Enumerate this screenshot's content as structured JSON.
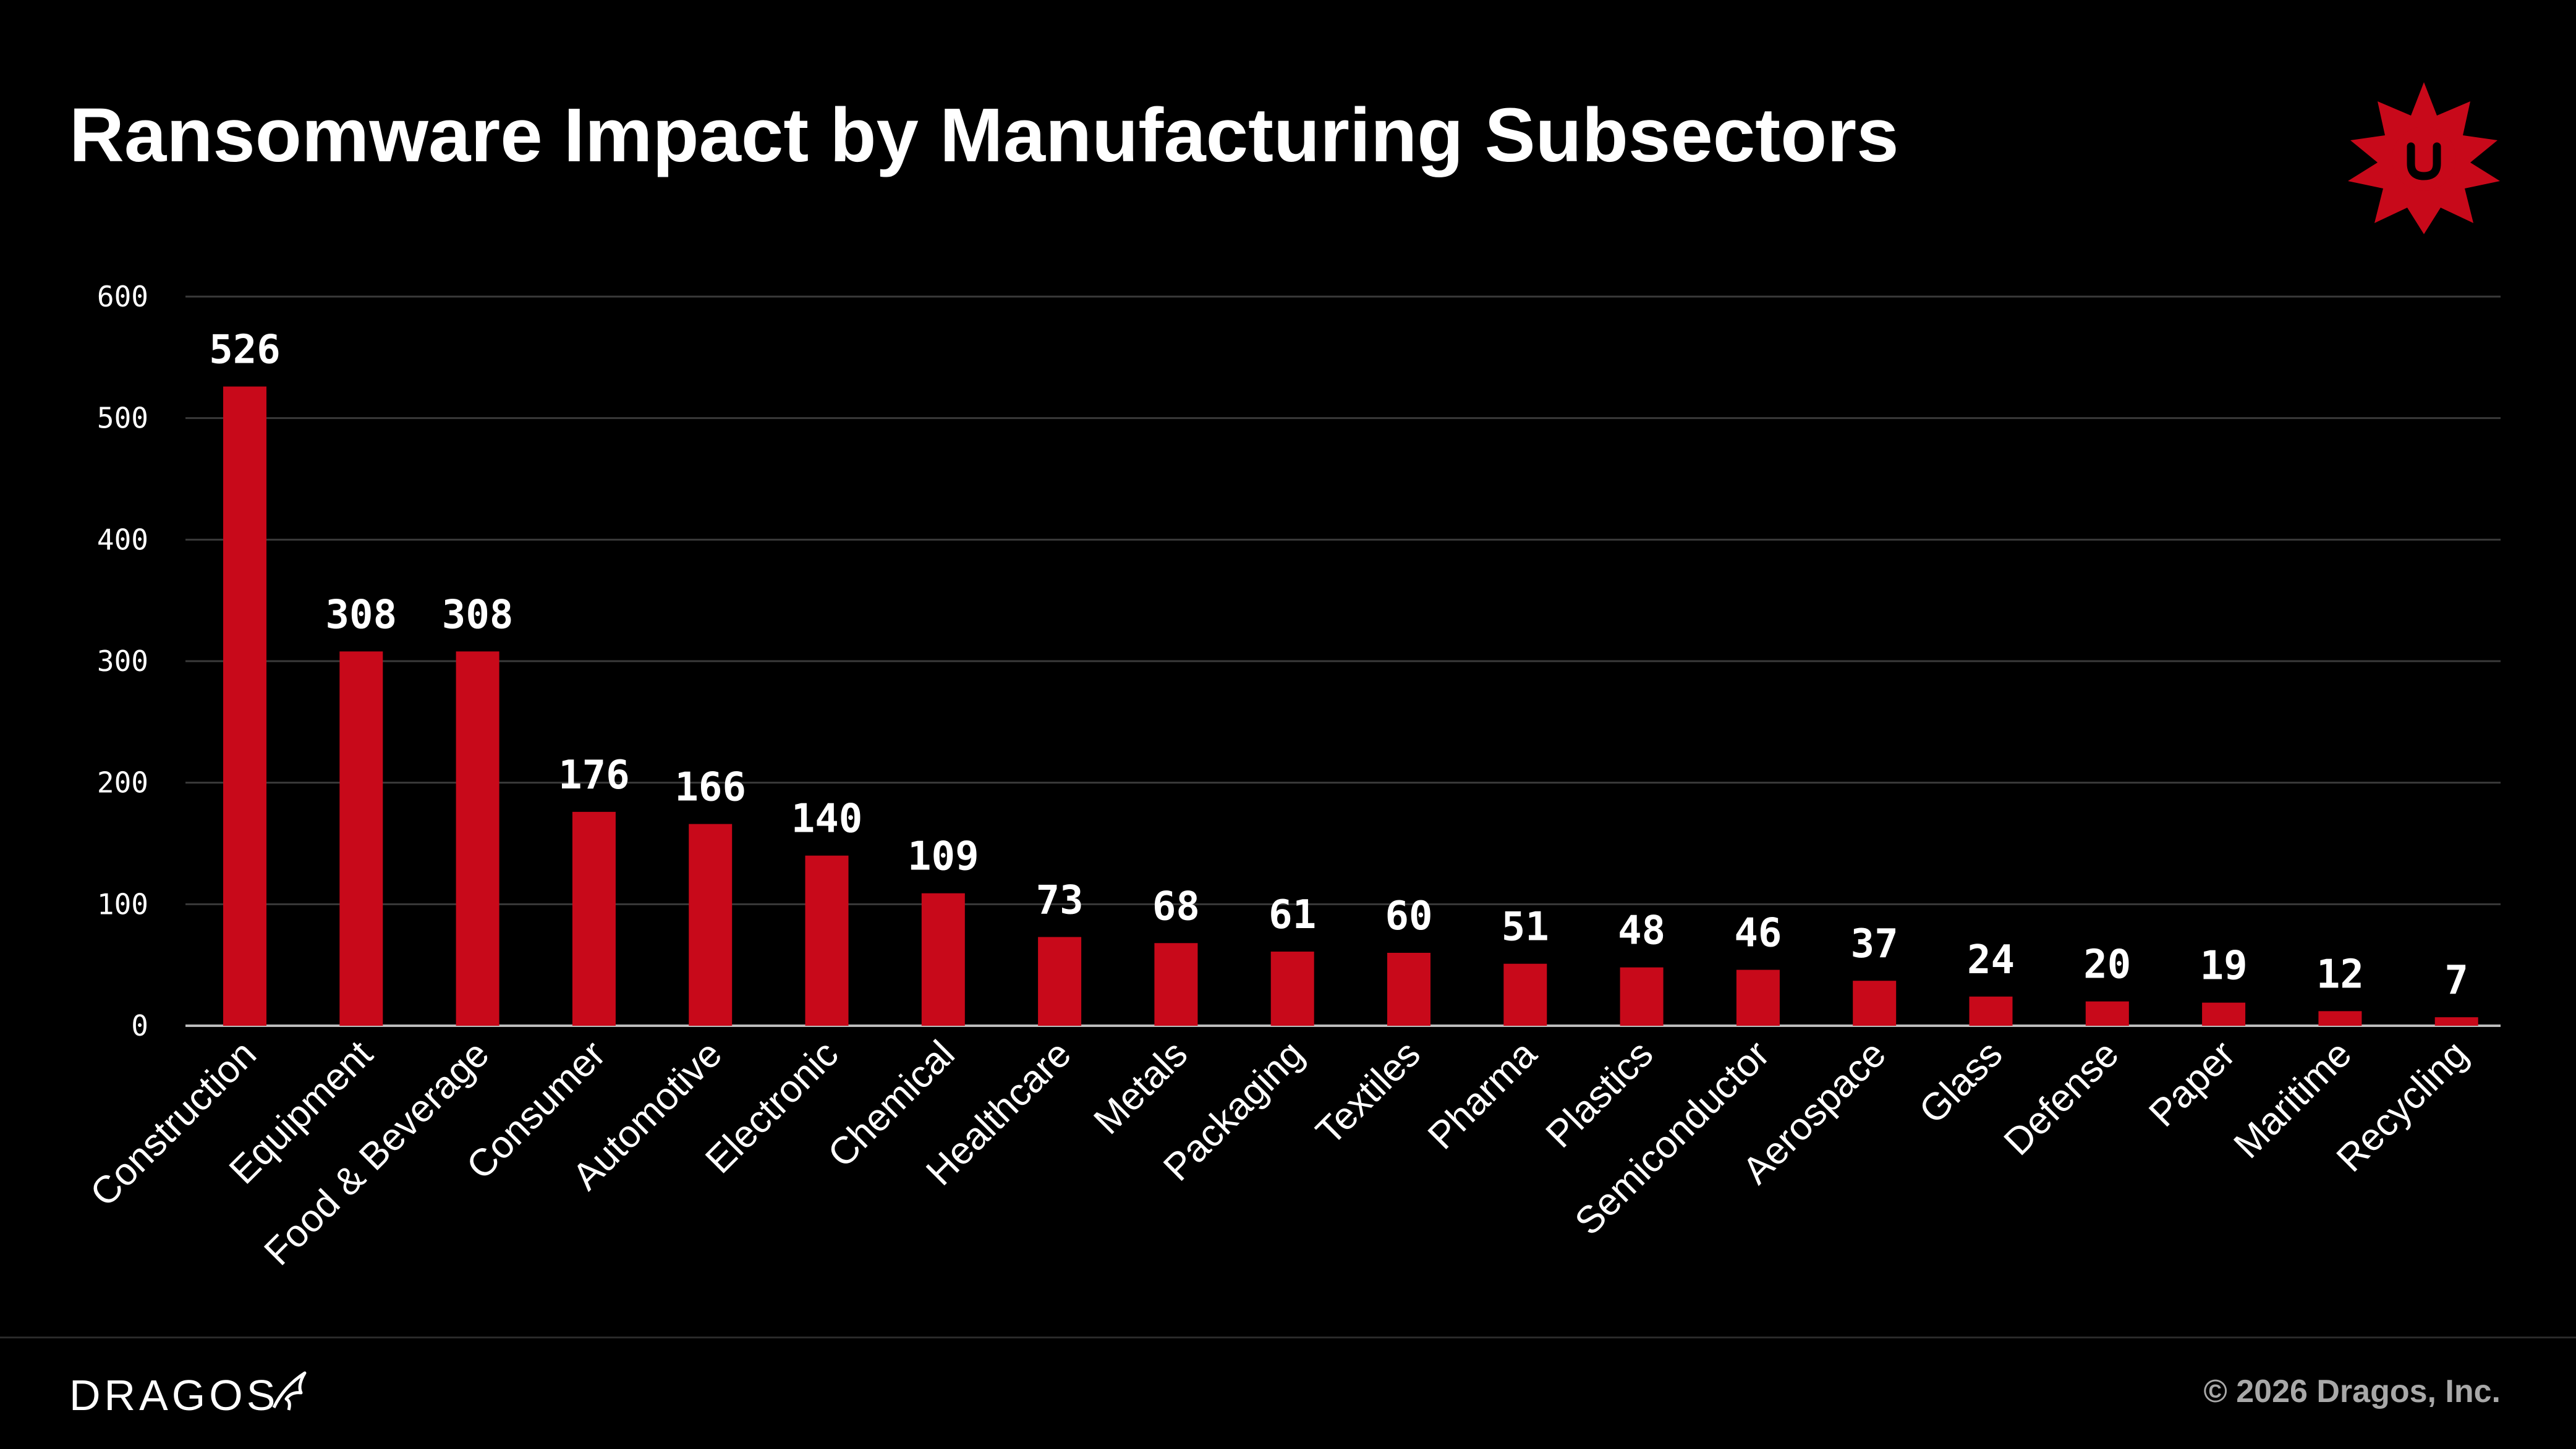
{
  "header": {
    "title": "Ransomware Impact by Manufacturing Subsectors"
  },
  "footer": {
    "logo_text": "DRAGOS",
    "copyright": "© 2026 Dragos, Inc."
  },
  "colors": {
    "background": "#000000",
    "bar": "#c8091a",
    "gridline": "#3a3a3a",
    "axis": "#bdbdbd",
    "text": "#ffffff",
    "muted_text": "#a8a8a8"
  },
  "chart_data": {
    "type": "bar",
    "title": "Ransomware Impact by Manufacturing Subsectors",
    "xlabel": "",
    "ylabel": "",
    "ylim": [
      0,
      600
    ],
    "yticks": [
      0,
      100,
      200,
      300,
      400,
      500,
      600
    ],
    "grid": true,
    "legend": "none",
    "categories": [
      "Construction",
      "Equipment",
      "Food & Beverage",
      "Consumer",
      "Automotive",
      "Electronic",
      "Chemical",
      "Healthcare",
      "Metals",
      "Packaging",
      "Textiles",
      "Pharma",
      "Plastics",
      "Semiconductor",
      "Aerospace",
      "Glass",
      "Defense",
      "Paper",
      "Maritime",
      "Recycling"
    ],
    "values": [
      526,
      308,
      308,
      176,
      166,
      140,
      109,
      73,
      68,
      61,
      60,
      51,
      48,
      46,
      37,
      24,
      20,
      19,
      12,
      7
    ],
    "data_labels": [
      "526",
      "308",
      "308",
      "176",
      "166",
      "140",
      "109",
      "73",
      "68",
      "61",
      "60",
      "51",
      "48",
      "46",
      "37",
      "24",
      "20",
      "19",
      "12",
      "7"
    ]
  }
}
